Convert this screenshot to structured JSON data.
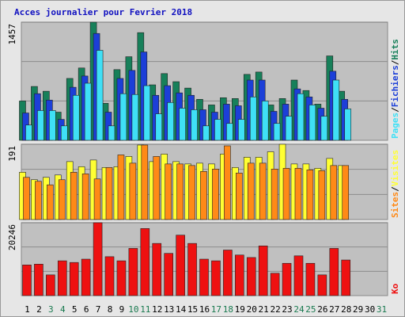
{
  "chart_data": {
    "type": "bar",
    "title": "Acces journalier pour Fevrier 2018",
    "separator": "/",
    "categories": [
      "1",
      "2",
      "3",
      "4",
      "5",
      "6",
      "7",
      "8",
      "9",
      "10",
      "11",
      "12",
      "13",
      "14",
      "15",
      "16",
      "17",
      "18",
      "19",
      "20",
      "21",
      "22",
      "23",
      "24",
      "25",
      "26",
      "27",
      "28",
      "29",
      "30",
      "31"
    ],
    "category_colors": [
      "#000",
      "#000",
      "#1a7a50",
      "#1a7a50",
      "#000",
      "#000",
      "#000",
      "#000",
      "#000",
      "#1a7a50",
      "#1a7a50",
      "#000",
      "#000",
      "#000",
      "#000",
      "#000",
      "#1a7a50",
      "#1a7a50",
      "#000",
      "#000",
      "#000",
      "#000",
      "#000",
      "#1a7a50",
      "#1a7a50",
      "#000",
      "#000",
      "#000",
      "#000",
      "#000",
      "#1a7a50"
    ],
    "panels": [
      {
        "ylim": [
          0,
          1457
        ],
        "yticks": [
          1457
        ],
        "series": [
          {
            "name": "Hits",
            "color": "#17805a",
            "values": [
              485,
              664,
              605,
              347,
              763,
              892,
              1457,
              456,
              872,
              1031,
              1328,
              684,
              823,
              723,
              644,
              505,
              436,
              525,
              515,
              813,
              842,
              436,
              515,
              743,
              614,
              446,
              1041,
              605,
              null,
              null,
              null
            ]
          },
          {
            "name": "Fichiers",
            "color": "#1c3fd8",
            "values": [
              337,
              575,
              496,
              258,
              654,
              793,
              1318,
              347,
              763,
              862,
              1090,
              555,
              674,
              585,
              555,
              377,
              347,
              446,
              426,
              743,
              743,
              357,
              446,
              634,
              535,
              396,
              852,
              505,
              null,
              null,
              null
            ]
          },
          {
            "name": "Pages",
            "color": "#3fe0f6",
            "values": [
              188,
              367,
              367,
              178,
              555,
              704,
              1110,
              178,
              575,
              565,
              674,
              327,
              466,
              396,
              377,
              178,
              258,
              208,
              258,
              535,
              485,
              208,
              297,
              575,
              436,
              297,
              743,
              387,
              null,
              null,
              null
            ]
          }
        ]
      },
      {
        "ylim": [
          0,
          191
        ],
        "yticks": [
          191
        ],
        "series": [
          {
            "name": "Visites",
            "color": "#ffff33",
            "values": [
              120,
              101,
              107,
              113,
              147,
              134,
              151,
              132,
              134,
              160,
              189,
              147,
              166,
              147,
              141,
              143,
              141,
              166,
              132,
              158,
              158,
              172,
              191,
              141,
              141,
              130,
              155,
              137,
              null,
              null,
              null
            ]
          },
          {
            "name": "Sites",
            "color": "#ff8a17",
            "values": [
              107,
              97,
              88,
              101,
              120,
              116,
              103,
              132,
              164,
              143,
              189,
              160,
              141,
              141,
              137,
              122,
              128,
              187,
              118,
              143,
              143,
              128,
              130,
              130,
              126,
              124,
              137,
              137,
              null,
              null,
              null
            ]
          }
        ]
      },
      {
        "ylim": [
          0,
          20246
        ],
        "yticks": [
          20246
        ],
        "series": [
          {
            "name": "Ko",
            "color": "#ee1111",
            "values": [
              8510,
              8740,
              5750,
              9660,
              9200,
              10120,
              20246,
              10810,
              9660,
              13110,
              18630,
              14490,
              11730,
              16790,
              14490,
              10120,
              9660,
              12650,
              11270,
              10580,
              13800,
              6210,
              8970,
              11040,
              8970,
              5750,
              13110,
              9890,
              null,
              null,
              null
            ]
          }
        ]
      }
    ]
  }
}
